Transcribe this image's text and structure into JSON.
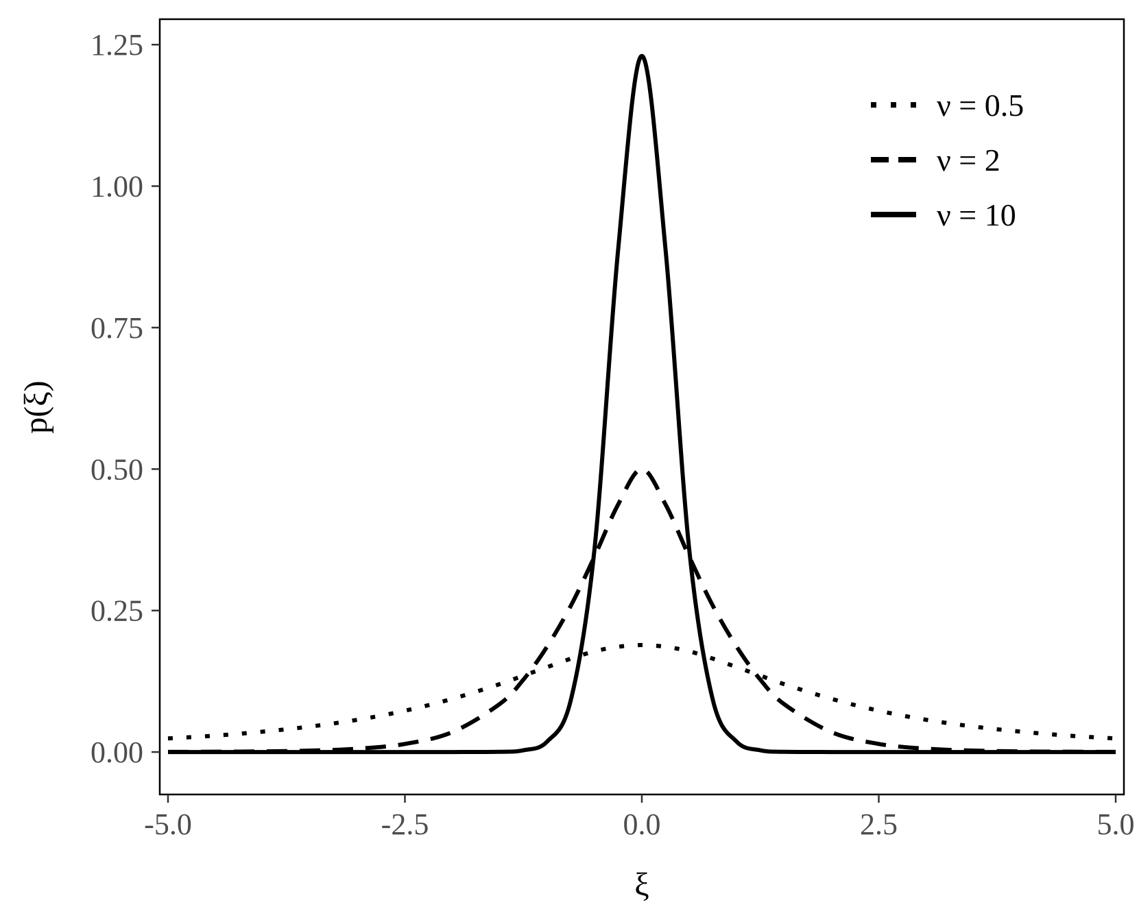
{
  "chart_data": {
    "type": "line",
    "title": "",
    "xlabel": "ξ",
    "ylabel": "p(ξ)",
    "xlim": [
      -5.0,
      5.0
    ],
    "ylim": [
      -0.075,
      1.295
    ],
    "xticks": [
      -5.0,
      -2.5,
      0.0,
      2.5,
      5.0
    ],
    "xtick_labels": [
      "-5.0",
      "-2.5",
      "0.0",
      "2.5",
      "5.0"
    ],
    "yticks": [
      0.0,
      0.25,
      0.5,
      0.75,
      1.0,
      1.25
    ],
    "ytick_labels": [
      "0.00",
      "0.25",
      "0.50",
      "0.75",
      "1.00",
      "1.25"
    ],
    "grid": false,
    "legend_position": "top-right",
    "x": [
      -5.0,
      -4.5,
      -4.0,
      -3.5,
      -3.0,
      -2.5,
      -2.0,
      -1.5,
      -1.25,
      -1.0,
      -0.75,
      -0.5,
      -0.25,
      0.0,
      0.25,
      0.5,
      0.75,
      1.0,
      1.25,
      1.5,
      2.0,
      2.5,
      3.0,
      3.5,
      4.0,
      4.5,
      5.0
    ],
    "series": [
      {
        "name": "ν = 0.5",
        "style": "dotted",
        "values": [
          0.024,
          0.029,
          0.036,
          0.045,
          0.057,
          0.073,
          0.094,
          0.12,
          0.135,
          0.15,
          0.165,
          0.178,
          0.186,
          0.189,
          0.186,
          0.178,
          0.165,
          0.15,
          0.135,
          0.12,
          0.094,
          0.073,
          0.057,
          0.045,
          0.036,
          0.029,
          0.024
        ]
      },
      {
        "name": "ν = 2",
        "style": "dashed",
        "values": [
          0.0002,
          0.0005,
          0.0011,
          0.0025,
          0.0059,
          0.0143,
          0.0352,
          0.0848,
          0.1279,
          0.1863,
          0.2583,
          0.3452,
          0.4375,
          0.5,
          0.4375,
          0.3452,
          0.2583,
          0.1863,
          0.1279,
          0.0848,
          0.0352,
          0.0143,
          0.0059,
          0.0025,
          0.0011,
          0.0005,
          0.0002
        ]
      },
      {
        "name": "ν = 10",
        "style": "solid",
        "values": [
          0.0,
          0.0,
          0.0,
          0.0,
          0.0,
          0.0,
          0.0,
          0.0004,
          0.0031,
          0.0183,
          0.0915,
          0.358,
          0.888,
          1.23,
          0.888,
          0.358,
          0.0915,
          0.0183,
          0.0031,
          0.0004,
          0.0,
          0.0,
          0.0,
          0.0,
          0.0,
          0.0,
          0.0
        ]
      }
    ]
  }
}
